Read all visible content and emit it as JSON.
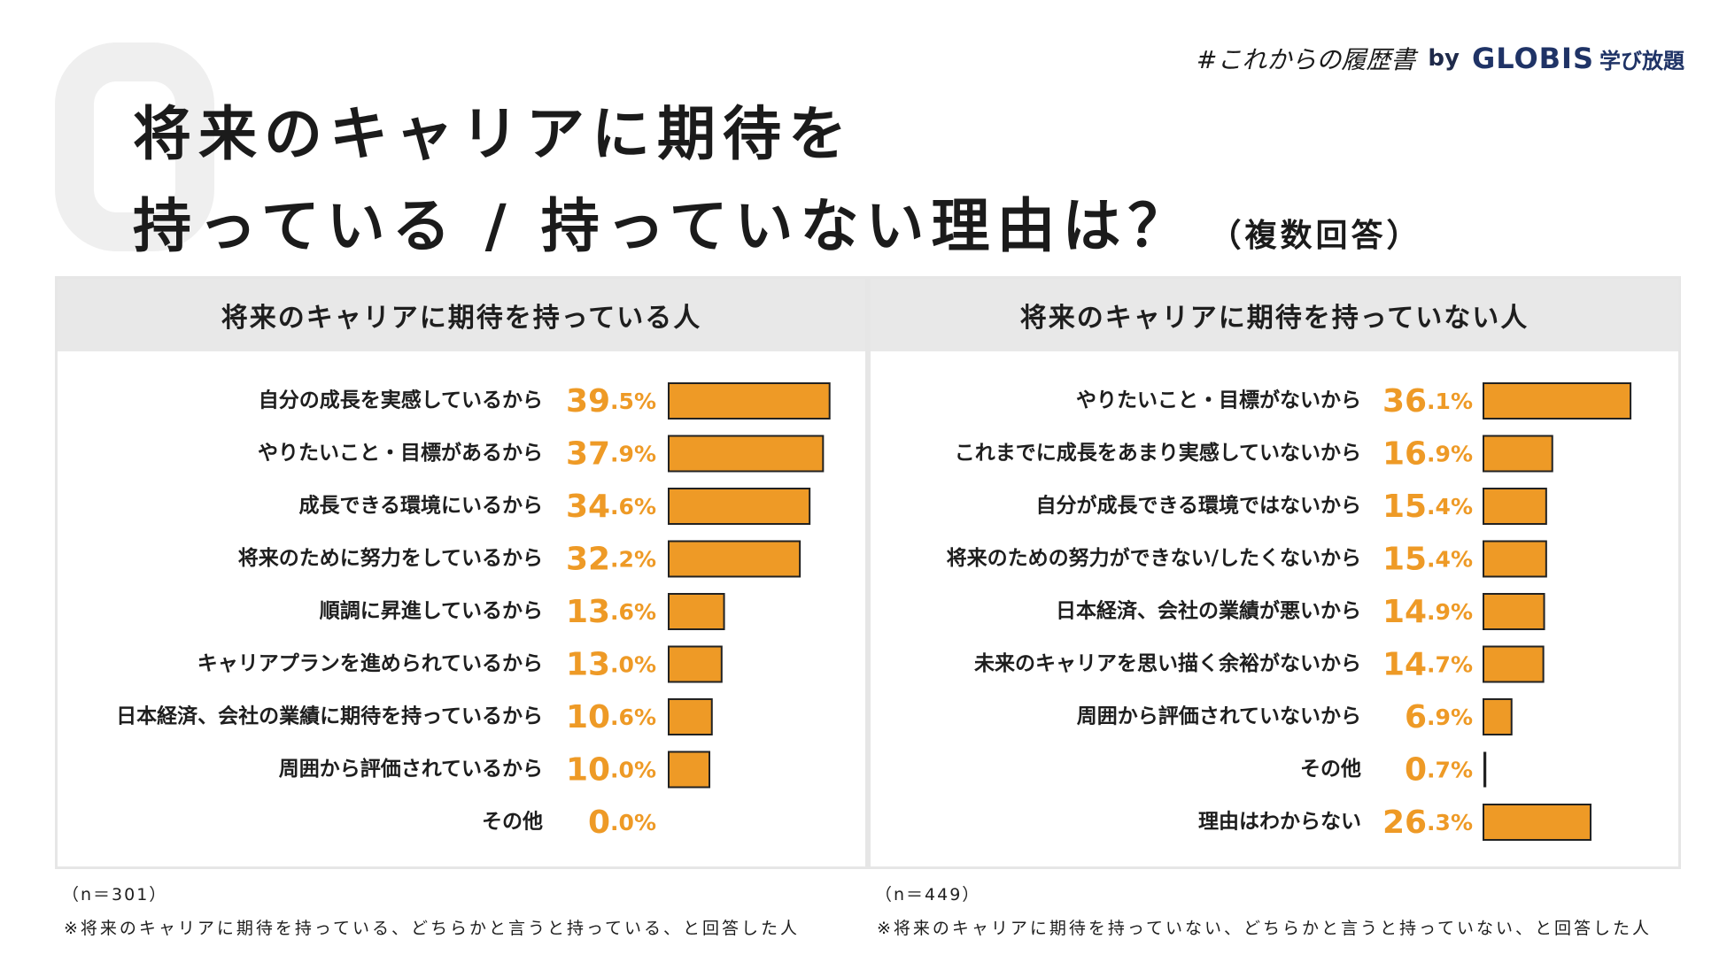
{
  "title": {
    "line1": "将来のキャリアに期待を",
    "line2": "持っている / 持っていない理由は？",
    "sub": "（複数回答）"
  },
  "brand": {
    "hashtag": "#これからの履歴書",
    "by": "by",
    "globis": "GLOBIS",
    "manabi": "学び放題"
  },
  "colors": {
    "bar": "#ee9a26",
    "bar_border": "#222222",
    "value": "#ee9a26",
    "header_bg": "#e8e8e8"
  },
  "chart_data": [
    {
      "type": "bar",
      "orientation": "horizontal",
      "title": "将来のキャリアに期待を持っている人",
      "unit": "%",
      "xlim": [
        0,
        40
      ],
      "categories": [
        "自分の成長を実感しているから",
        "やりたいこと・目標があるから",
        "成長できる環境にいるから",
        "将来のために努力をしているから",
        "順調に昇進しているから",
        "キャリアプランを進められているから",
        "日本経済、会社の業績に期待を持っているから",
        "周囲から評価されているから",
        "その他"
      ],
      "values": [
        39.5,
        37.9,
        34.6,
        32.2,
        13.6,
        13.0,
        10.6,
        10.0,
        0.0
      ],
      "labels": [
        "39.5%",
        "37.9%",
        "34.6%",
        "32.2%",
        "13.6%",
        "13.0%",
        "10.6%",
        "10.0%",
        "0.0%"
      ]
    },
    {
      "type": "bar",
      "orientation": "horizontal",
      "title": "将来のキャリアに期待を持っていない人",
      "unit": "%",
      "xlim": [
        0,
        40
      ],
      "categories": [
        "やりたいこと・目標がないから",
        "これまでに成長をあまり実感していないから",
        "自分が成長できる環境ではないから",
        "将来のための努力ができない/したくないから",
        "日本経済、会社の業績が悪いから",
        "未来のキャリアを思い描く余裕がないから",
        "周囲から評価されていないから",
        "その他",
        "理由はわからない"
      ],
      "values": [
        36.1,
        16.9,
        15.4,
        15.4,
        14.9,
        14.7,
        6.9,
        0.7,
        26.3
      ],
      "labels": [
        "36.1%",
        "16.9%",
        "15.4%",
        "15.4%",
        "14.9%",
        "14.7%",
        "6.9%",
        "0.7%",
        "26.3%"
      ]
    }
  ],
  "notes": {
    "left_n": "（n＝301）",
    "right_n": "（n＝449）",
    "left_text": "※将来のキャリアに期待を持っている、どちらかと言うと持っている、と回答した人",
    "right_text": "※将来のキャリアに期待を持っていない、どちらかと言うと持っていない、と回答した人"
  }
}
